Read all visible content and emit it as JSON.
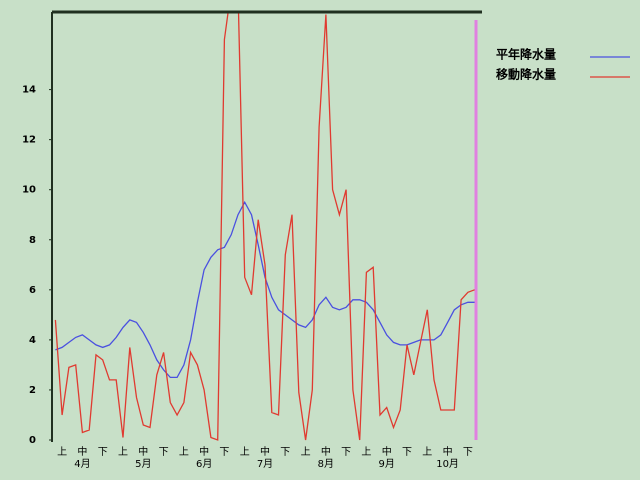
{
  "chart_data": {
    "type": "line",
    "categories": [
      null,
      "上",
      null,
      null,
      "中",
      null,
      null,
      "下",
      null,
      null,
      "上",
      null,
      null,
      "中",
      null,
      null,
      "下",
      null,
      null,
      "上",
      null,
      null,
      "中",
      null,
      null,
      "下",
      null,
      null,
      "上",
      null,
      null,
      "中",
      null,
      null,
      "下",
      null,
      null,
      "上",
      null,
      null,
      "中",
      null,
      null,
      "下",
      null,
      null,
      "上",
      null,
      null,
      "中",
      null,
      null,
      "下",
      null,
      null,
      "上",
      null,
      null,
      "中",
      null,
      null,
      "下",
      null
    ],
    "months": [
      "4月",
      "5月",
      "6月",
      "7月",
      "8月",
      "9月",
      "10月"
    ],
    "series": [
      {
        "name": "平年降水量",
        "color": "#4a50e0",
        "values": [
          3.6,
          3.7,
          3.9,
          4.1,
          4.2,
          4.0,
          3.8,
          3.7,
          3.8,
          4.1,
          4.5,
          4.8,
          4.7,
          4.3,
          3.8,
          3.2,
          2.8,
          2.5,
          2.5,
          3.0,
          4.0,
          5.5,
          6.8,
          7.3,
          7.6,
          7.7,
          8.2,
          9.0,
          9.5,
          9.0,
          7.8,
          6.5,
          5.7,
          5.2,
          5.0,
          4.8,
          4.6,
          4.5,
          4.8,
          5.4,
          5.7,
          5.3,
          5.2,
          5.3,
          5.6,
          5.6,
          5.5,
          5.2,
          4.7,
          4.2,
          3.9,
          3.8,
          3.8,
          3.9,
          4.0,
          4.0,
          4.0,
          4.2,
          4.7,
          5.2,
          5.4,
          5.5,
          5.5
        ]
      },
      {
        "name": "移動降水量",
        "color": "#e03a30",
        "values": [
          4.8,
          1.0,
          2.9,
          3.0,
          0.3,
          0.4,
          3.4,
          3.2,
          2.4,
          2.4,
          0.1,
          3.7,
          1.7,
          0.6,
          0.5,
          2.6,
          3.5,
          1.5,
          1.0,
          1.5,
          3.5,
          3.0,
          2.0,
          0.1,
          0.0,
          16,
          18,
          18,
          6.5,
          5.8,
          8.8,
          7.0,
          1.1,
          1.0,
          7.4,
          9.0,
          1.9,
          0.0,
          2.0,
          12.5,
          17.0,
          10.0,
          9.0,
          10.0,
          2.0,
          0.0,
          6.7,
          6.9,
          1.0,
          1.3,
          0.5,
          1.2,
          3.8,
          2.6,
          3.9,
          5.2,
          2.4,
          1.2,
          1.2,
          1.2,
          5.6,
          5.9,
          6.0
        ]
      }
    ],
    "ylim": [
      0,
      17.1
    ],
    "yticks": [
      0,
      2,
      4,
      6,
      8,
      10,
      12,
      14
    ]
  }
}
